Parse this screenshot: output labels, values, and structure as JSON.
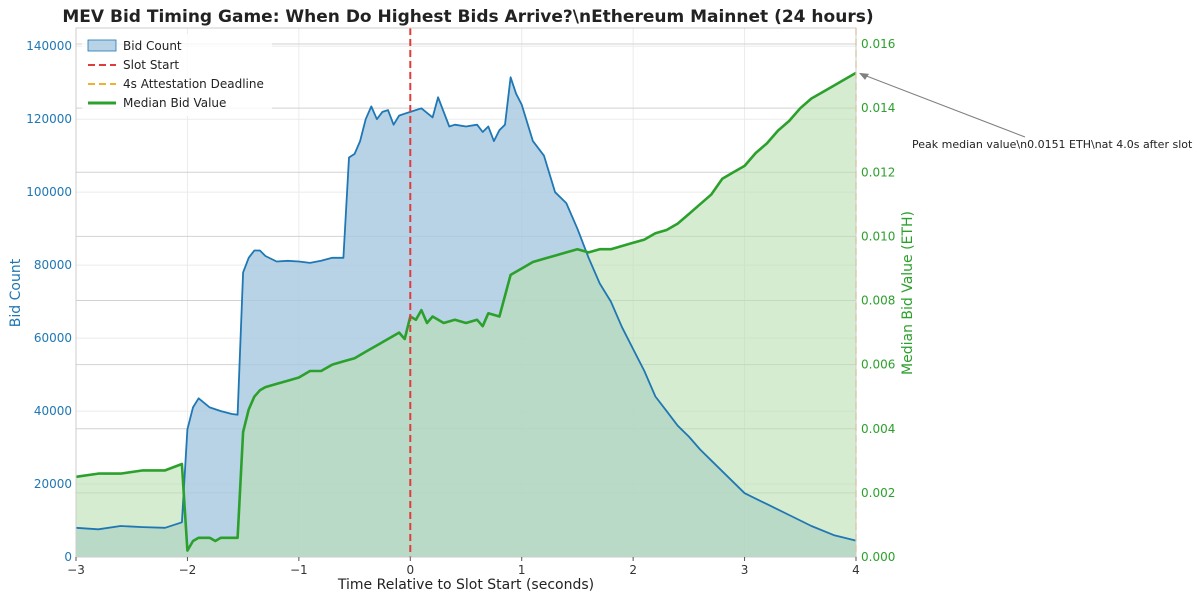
{
  "chart_data": {
    "type": "area",
    "title": "MEV Bid Timing Game: When Do Highest Bids Arrive?\\nEthereum Mainnet (24 hours)",
    "xlabel": "Time Relative to Slot Start (seconds)",
    "ylabel_left": "Bid Count",
    "ylabel_right": "Median Bid Value (ETH)",
    "xlim": [
      -3,
      4
    ],
    "ylim_left": [
      0,
      145000
    ],
    "ylim_right": [
      0,
      0.0165
    ],
    "x_ticks": [
      -3,
      -2,
      -1,
      0,
      1,
      2,
      3,
      4
    ],
    "x_tick_labels": [
      "−3",
      "−2",
      "−1",
      "0",
      "1",
      "2",
      "3",
      "4"
    ],
    "left_ticks": [
      0,
      20000,
      40000,
      60000,
      80000,
      100000,
      120000,
      140000
    ],
    "left_tick_labels": [
      "0",
      "20000",
      "40000",
      "60000",
      "80000",
      "100000",
      "120000",
      "140000"
    ],
    "right_ticks": [
      0,
      0.002,
      0.004,
      0.006,
      0.008,
      0.01,
      0.012,
      0.014,
      0.016
    ],
    "right_tick_labels": [
      "0.000",
      "0.002",
      "0.004",
      "0.006",
      "0.008",
      "0.010",
      "0.012",
      "0.014",
      "0.016"
    ],
    "grid": true,
    "legend_position": "top-left",
    "legend": [
      "Bid Count",
      "Slot Start",
      "4s Attestation Deadline",
      "Median Bid Value"
    ],
    "colors": {
      "bid_count_line": "#1f77b4",
      "bid_count_fill": "#a6c8e0",
      "median_line": "#2ca02c",
      "median_fill": "#b9dfb0",
      "slot_start": "#e03c3c",
      "deadline": "#f0b030",
      "annotation_arrow": "#808080"
    },
    "vlines": [
      {
        "name": "Slot Start",
        "x": 0
      },
      {
        "name": "4s Attestation Deadline",
        "x": 4
      }
    ],
    "series": [
      {
        "name": "Bid Count",
        "axis": "left",
        "x": [
          -3.0,
          -2.8,
          -2.6,
          -2.4,
          -2.2,
          -2.05,
          -2.0,
          -1.95,
          -1.9,
          -1.8,
          -1.7,
          -1.6,
          -1.55,
          -1.5,
          -1.45,
          -1.4,
          -1.35,
          -1.3,
          -1.2,
          -1.1,
          -1.0,
          -0.9,
          -0.8,
          -0.7,
          -0.6,
          -0.55,
          -0.5,
          -0.45,
          -0.4,
          -0.35,
          -0.3,
          -0.25,
          -0.2,
          -0.15,
          -0.1,
          -0.05,
          0.0,
          0.1,
          0.2,
          0.25,
          0.3,
          0.35,
          0.4,
          0.5,
          0.6,
          0.65,
          0.7,
          0.75,
          0.8,
          0.85,
          0.9,
          0.95,
          1.0,
          1.1,
          1.2,
          1.3,
          1.4,
          1.5,
          1.6,
          1.7,
          1.8,
          1.9,
          2.0,
          2.1,
          2.2,
          2.3,
          2.4,
          2.5,
          2.6,
          2.7,
          2.8,
          2.9,
          3.0,
          3.2,
          3.4,
          3.6,
          3.8,
          4.0
        ],
        "values": [
          8000,
          7600,
          8500,
          8200,
          8000,
          9500,
          35000,
          41000,
          43500,
          41000,
          40000,
          39200,
          39000,
          78000,
          82000,
          84000,
          84000,
          82500,
          81000,
          81200,
          81000,
          80600,
          81200,
          82000,
          82000,
          109500,
          110500,
          114000,
          120000,
          123500,
          120000,
          122000,
          122500,
          118500,
          121000,
          121500,
          122000,
          123000,
          120500,
          126000,
          122000,
          118000,
          118500,
          118000,
          118500,
          116500,
          118000,
          114000,
          117000,
          118500,
          131500,
          127000,
          124000,
          114000,
          110000,
          100000,
          97000,
          90000,
          82000,
          75000,
          70000,
          63000,
          57000,
          51000,
          44000,
          40000,
          36000,
          33000,
          29500,
          26500,
          23500,
          20500,
          17500,
          14500,
          11500,
          8500,
          6000,
          4500
        ]
      },
      {
        "name": "Median Bid Value",
        "axis": "right",
        "x": [
          -3.0,
          -2.8,
          -2.6,
          -2.4,
          -2.2,
          -2.05,
          -2.0,
          -1.95,
          -1.9,
          -1.8,
          -1.75,
          -1.7,
          -1.6,
          -1.55,
          -1.5,
          -1.45,
          -1.4,
          -1.35,
          -1.3,
          -1.2,
          -1.1,
          -1.0,
          -0.9,
          -0.8,
          -0.7,
          -0.6,
          -0.5,
          -0.4,
          -0.3,
          -0.2,
          -0.1,
          -0.05,
          0.0,
          0.05,
          0.1,
          0.15,
          0.2,
          0.3,
          0.4,
          0.5,
          0.6,
          0.65,
          0.7,
          0.8,
          0.9,
          1.0,
          1.1,
          1.2,
          1.3,
          1.4,
          1.5,
          1.6,
          1.7,
          1.8,
          1.9,
          2.0,
          2.1,
          2.2,
          2.3,
          2.4,
          2.5,
          2.6,
          2.7,
          2.8,
          2.9,
          3.0,
          3.1,
          3.2,
          3.3,
          3.4,
          3.5,
          3.6,
          3.7,
          3.8,
          3.9,
          4.0
        ],
        "values": [
          0.0025,
          0.0026,
          0.0026,
          0.0027,
          0.0027,
          0.0029,
          0.0002,
          0.0005,
          0.0006,
          0.0006,
          0.0005,
          0.0006,
          0.0006,
          0.0006,
          0.0039,
          0.0046,
          0.005,
          0.0052,
          0.0053,
          0.0054,
          0.0055,
          0.0056,
          0.0058,
          0.0058,
          0.006,
          0.0061,
          0.0062,
          0.0064,
          0.0066,
          0.0068,
          0.007,
          0.0068,
          0.0075,
          0.0074,
          0.0077,
          0.0073,
          0.0075,
          0.0073,
          0.0074,
          0.0073,
          0.0074,
          0.0072,
          0.0076,
          0.0075,
          0.0088,
          0.009,
          0.0092,
          0.0093,
          0.0094,
          0.0095,
          0.0096,
          0.0095,
          0.0096,
          0.0096,
          0.0097,
          0.0098,
          0.0099,
          0.0101,
          0.0102,
          0.0104,
          0.0107,
          0.011,
          0.0113,
          0.0118,
          0.012,
          0.0122,
          0.0126,
          0.0129,
          0.0133,
          0.0136,
          0.014,
          0.0143,
          0.0145,
          0.0147,
          0.0149,
          0.0151
        ]
      }
    ],
    "annotation": {
      "text": "Peak median value\\n0.0151 ETH\\nat 4.0s after slot",
      "x": 4.0,
      "y": 0.0151
    }
  }
}
